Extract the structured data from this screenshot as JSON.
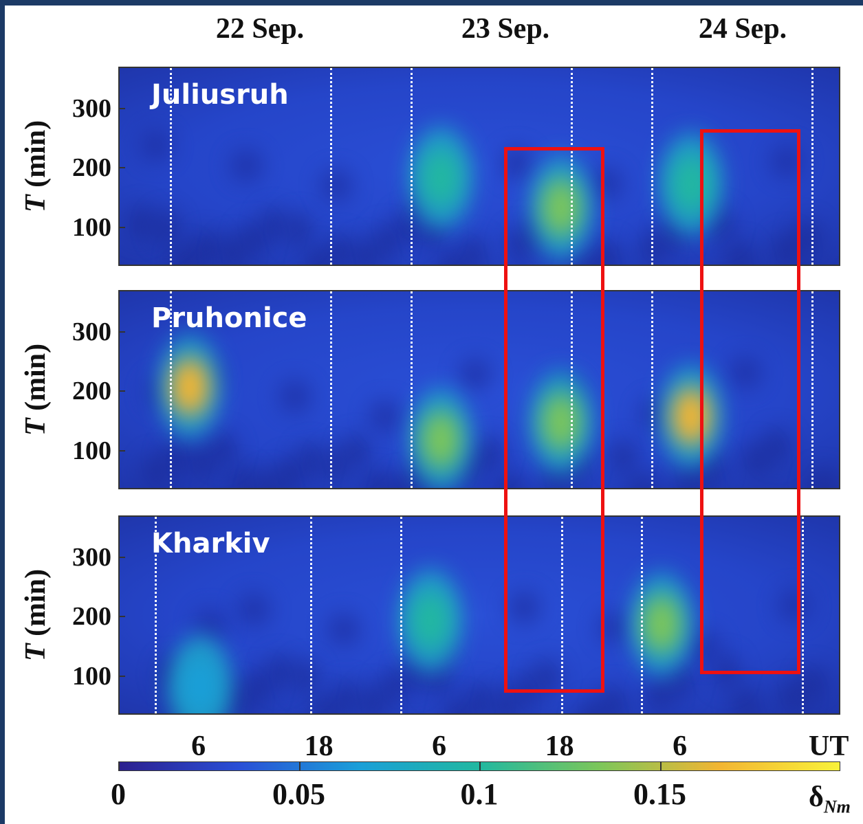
{
  "chart_data": {
    "type": "heatmap",
    "dates": [
      "22 Sep.",
      "23 Sep.",
      "24 Sep."
    ],
    "ylabel": "T (min)",
    "yticks": [
      "300",
      "200",
      "100"
    ],
    "ylim": [
      35,
      370
    ],
    "xlabel": "UT",
    "xticks": [
      "6",
      "18",
      "6",
      "18",
      "6"
    ],
    "panels": [
      {
        "station": "Juliusruh",
        "dashed_lines_ut_hours": [
          3,
          19,
          27,
          43,
          51,
          67
        ],
        "peaks": [
          {
            "ut_hours": 30,
            "period_min": 185,
            "value": 0.09
          },
          {
            "ut_hours": 42,
            "period_min": 135,
            "value": 0.13
          },
          {
            "ut_hours": 55,
            "period_min": 175,
            "value": 0.1
          }
        ]
      },
      {
        "station": "Pruhonice",
        "dashed_lines_ut_hours": [
          3,
          19,
          27,
          43,
          51,
          67
        ],
        "peaks": [
          {
            "ut_hours": 5,
            "period_min": 210,
            "value": 0.16
          },
          {
            "ut_hours": 30,
            "period_min": 120,
            "value": 0.12
          },
          {
            "ut_hours": 42,
            "period_min": 150,
            "value": 0.14
          },
          {
            "ut_hours": 55,
            "period_min": 160,
            "value": 0.16
          }
        ]
      },
      {
        "station": "Kharkiv",
        "dashed_lines_ut_hours": [
          1.5,
          17,
          26,
          42,
          50,
          66
        ],
        "peaks": [
          {
            "ut_hours": 29,
            "period_min": 195,
            "value": 0.09
          },
          {
            "ut_hours": 52,
            "period_min": 190,
            "value": 0.14
          },
          {
            "ut_hours": 6,
            "period_min": 85,
            "value": 0.08
          }
        ]
      }
    ],
    "highlight_boxes": [
      {
        "ut_start": 36.5,
        "ut_end": 46.5,
        "period_top_min": 235,
        "period_bottom_min": 72
      },
      {
        "ut_start": 56,
        "ut_end": 66,
        "period_top_min": 265,
        "period_bottom_min": 103
      }
    ],
    "colorbar": {
      "label": "δ",
      "label_subscript": "Nm",
      "ticks": [
        "0",
        "0.05",
        "0.1",
        "0.15"
      ],
      "range": [
        0,
        0.2
      ],
      "colors": [
        "#2c1f8e",
        "#2a4fd6",
        "#1a9fd8",
        "#22b8a0",
        "#7cc65a",
        "#f2b533",
        "#f9f23a"
      ]
    }
  }
}
